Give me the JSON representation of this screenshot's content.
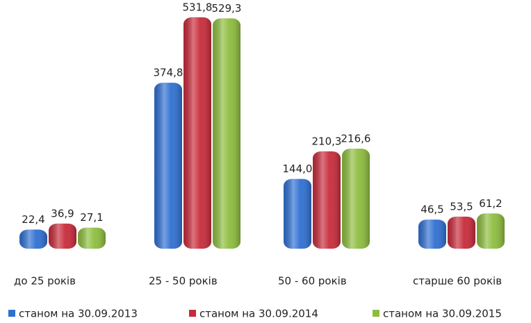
{
  "chart_data": {
    "type": "bar",
    "categories": [
      "до 25 років",
      "25 - 50 років",
      "50 - 60 років",
      "старше 60 років"
    ],
    "series": [
      {
        "name": "станом на 30.09.2013",
        "color": "#2f6fd2",
        "values": [
          22.4,
          374.8,
          144.0,
          46.5
        ],
        "value_labels": [
          "22,4",
          "374,8",
          "144,0",
          "46,5"
        ]
      },
      {
        "name": "станом на 30.09.2014",
        "color": "#c82a3a",
        "values": [
          36.9,
          531.8,
          210.3,
          53.5
        ],
        "value_labels": [
          "36,9",
          "531,8",
          "210,3",
          "53,5"
        ]
      },
      {
        "name": "станом на 30.09.2015",
        "color": "#8dbd3d",
        "values": [
          27.1,
          529.3,
          216.6,
          61.2
        ],
        "value_labels": [
          "27,1",
          "529,3",
          "216,6",
          "61,2"
        ]
      }
    ],
    "legend": "bottom"
  }
}
